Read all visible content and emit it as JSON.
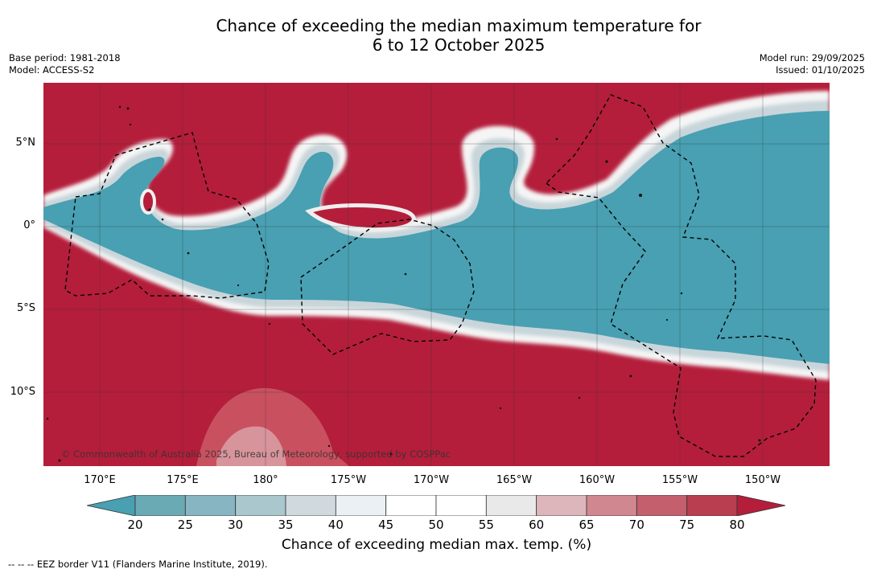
{
  "title_line1": "Chance of exceeding the median maximum temperature for",
  "title_line2": "6 to 12 October 2025",
  "base_period": "Base period: 1981-2018",
  "model": "Model: ACCESS-S2",
  "model_run": "Model run: 29/09/2025",
  "issued": "Issued: 01/10/2025",
  "latitude_labels": [
    "5°N",
    "0°",
    "5°S",
    "10°S"
  ],
  "longitude_labels": [
    "170°E",
    "175°E",
    "180°",
    "175°W",
    "170°W",
    "165°W",
    "160°W",
    "155°W",
    "150°W"
  ],
  "copyright": "© Commonwealth of Australia 2025, Bureau of Meteorology, supported by COSPPac",
  "colorbar": {
    "ticks": [
      "20",
      "25",
      "30",
      "35",
      "40",
      "45",
      "50",
      "55",
      "60",
      "65",
      "70",
      "75",
      "80"
    ],
    "colors": [
      "#6aaab5",
      "#87b6c2",
      "#a9c7cc",
      "#d0dade",
      "#eaf0f3",
      "#ffffff",
      "#ffffff",
      "#e9e9ea",
      "#ddb6bc",
      "#d08790",
      "#c4606e",
      "#b93e4f"
    ],
    "low_color": "#48a0b2",
    "high_color": "#b41e3b",
    "title": "Chance of exceeding median max. temp. (%)"
  },
  "footnote": "--  --  -- EEZ border V11 (Flanders Marine Institute, 2019)."
}
